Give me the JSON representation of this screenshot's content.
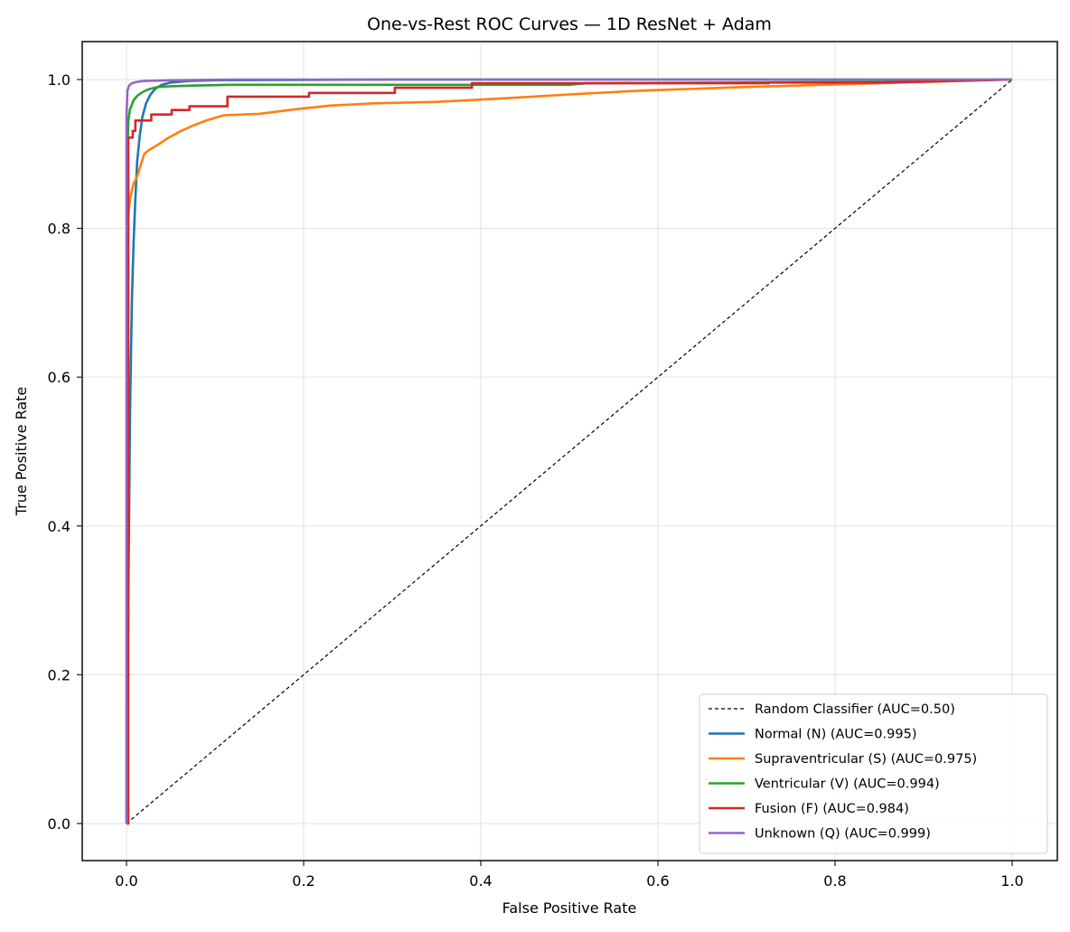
{
  "chart_data": {
    "type": "line",
    "title": "One-vs-Rest ROC Curves — 1D ResNet + Adam",
    "xlabel": "False Positive Rate",
    "ylabel": "True Positive Rate",
    "xlim": [
      -0.05,
      1.05
    ],
    "ylim": [
      -0.05,
      1.05
    ],
    "xticks": [
      "0.0",
      "0.2",
      "0.4",
      "0.6",
      "0.8",
      "1.0"
    ],
    "yticks": [
      "0.0",
      "0.2",
      "0.4",
      "0.6",
      "0.8",
      "1.0"
    ],
    "grid": true,
    "legend_position": "lower right",
    "series": [
      {
        "name": "Random Classifier (AUC=0.50)",
        "color": "#000000",
        "style": "dashed",
        "x": [
          0.0,
          1.0
        ],
        "y": [
          0.0,
          1.0
        ]
      },
      {
        "name": "Normal (N) (AUC=0.995)",
        "color": "#1f77b4",
        "style": "solid",
        "auc": 0.995,
        "x": [
          0.0,
          0.002,
          0.004,
          0.006,
          0.008,
          0.01,
          0.012,
          0.015,
          0.018,
          0.022,
          0.027,
          0.033,
          0.04,
          0.05,
          0.07,
          0.1,
          0.3,
          0.5,
          1.0
        ],
        "y": [
          0.0,
          0.3,
          0.55,
          0.7,
          0.78,
          0.84,
          0.89,
          0.925,
          0.95,
          0.968,
          0.98,
          0.988,
          0.993,
          0.996,
          0.998,
          0.999,
          1.0,
          1.0,
          1.0
        ]
      },
      {
        "name": "Supraventricular (S) (AUC=0.975)",
        "color": "#ff7f0e",
        "style": "solid",
        "auc": 0.975,
        "x": [
          0.0,
          0.001,
          0.002,
          0.004,
          0.008,
          0.012,
          0.016,
          0.02,
          0.025,
          0.035,
          0.045,
          0.06,
          0.075,
          0.09,
          0.11,
          0.15,
          0.19,
          0.23,
          0.28,
          0.35,
          0.43,
          0.5,
          0.58,
          0.7,
          0.85,
          1.0
        ],
        "y": [
          0.0,
          0.78,
          0.82,
          0.84,
          0.86,
          0.87,
          0.885,
          0.9,
          0.905,
          0.912,
          0.92,
          0.93,
          0.938,
          0.945,
          0.952,
          0.954,
          0.96,
          0.965,
          0.968,
          0.97,
          0.975,
          0.98,
          0.985,
          0.99,
          0.995,
          1.0
        ]
      },
      {
        "name": "Ventricular (V) (AUC=0.994)",
        "color": "#2ca02c",
        "style": "solid",
        "auc": 0.994,
        "x": [
          0.0,
          0.001,
          0.002,
          0.004,
          0.008,
          0.012,
          0.018,
          0.025,
          0.035,
          0.05,
          0.08,
          0.12,
          0.25,
          0.5,
          0.52,
          0.7,
          0.85,
          0.92,
          1.0
        ],
        "y": [
          0.0,
          0.9,
          0.945,
          0.96,
          0.972,
          0.978,
          0.983,
          0.987,
          0.99,
          0.991,
          0.992,
          0.993,
          0.993,
          0.993,
          0.995,
          0.996,
          0.997,
          0.999,
          1.0
        ]
      },
      {
        "name": "Fusion (F) (AUC=0.984)",
        "color": "#d62728",
        "style": "solid",
        "auc": 0.984,
        "x": [
          0.0,
          0.002,
          0.002,
          0.007,
          0.007,
          0.01,
          0.01,
          0.028,
          0.028,
          0.051,
          0.051,
          0.071,
          0.071,
          0.114,
          0.114,
          0.206,
          0.206,
          0.303,
          0.303,
          0.39,
          0.39,
          0.725,
          0.725,
          0.85,
          1.0
        ],
        "y": [
          0.0,
          0.0,
          0.922,
          0.922,
          0.931,
          0.931,
          0.945,
          0.945,
          0.953,
          0.953,
          0.959,
          0.959,
          0.964,
          0.964,
          0.977,
          0.977,
          0.982,
          0.982,
          0.989,
          0.989,
          0.995,
          0.995,
          0.996,
          0.996,
          1.0
        ]
      },
      {
        "name": "Unknown (Q) (AUC=0.999)",
        "color": "#9467bd",
        "style": "solid",
        "auc": 0.999,
        "x": [
          0.0,
          0.0,
          0.001,
          0.003,
          0.006,
          0.012,
          0.02,
          0.05,
          0.12,
          1.0
        ],
        "y": [
          0.0,
          0.95,
          0.985,
          0.992,
          0.995,
          0.997,
          0.998,
          0.999,
          1.0,
          1.0
        ]
      }
    ]
  }
}
